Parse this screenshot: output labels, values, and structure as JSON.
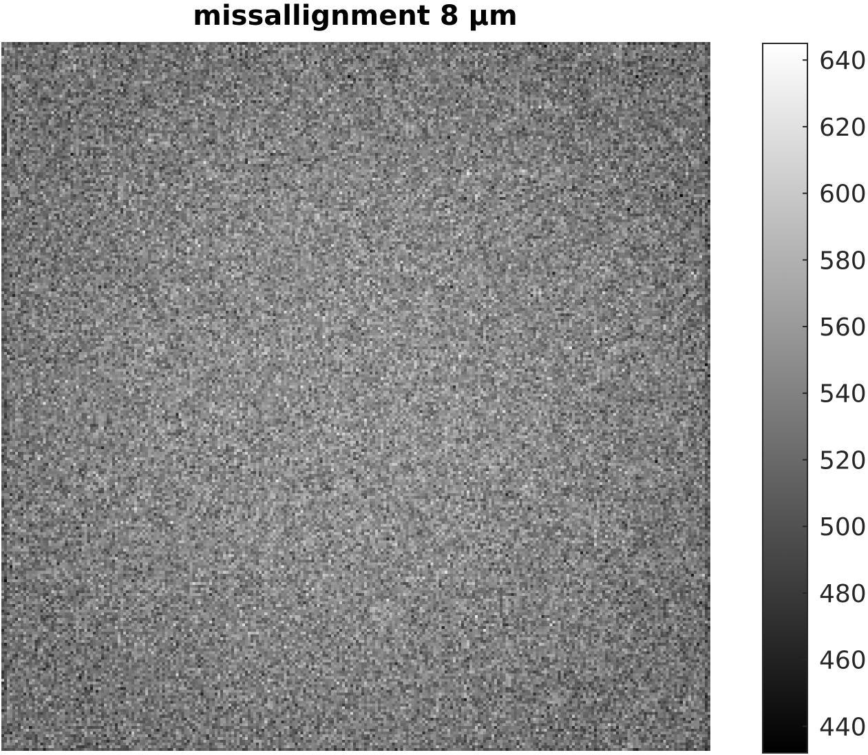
{
  "chart_data": {
    "type": "heatmap",
    "title": "missallignment 8 µm",
    "xlabel": "",
    "ylabel": "",
    "colormap": "gray",
    "colorbar": {
      "range": [
        432,
        645
      ],
      "ticks": [
        440,
        460,
        480,
        500,
        520,
        540,
        560,
        580,
        600,
        620,
        640
      ],
      "tick_labels": [
        "440",
        "460",
        "480",
        "500",
        "520",
        "540",
        "560",
        "580",
        "600",
        "620",
        "640"
      ]
    },
    "field": {
      "description_type": "noise",
      "grid_size": [
        256,
        256
      ],
      "mean_center": 552,
      "mean_edge": 528,
      "noise_std": 22,
      "vmin": 432,
      "vmax": 645
    },
    "grid": false,
    "colors": {
      "text": "#262626",
      "title": "#000000",
      "frame": "#262626"
    }
  }
}
